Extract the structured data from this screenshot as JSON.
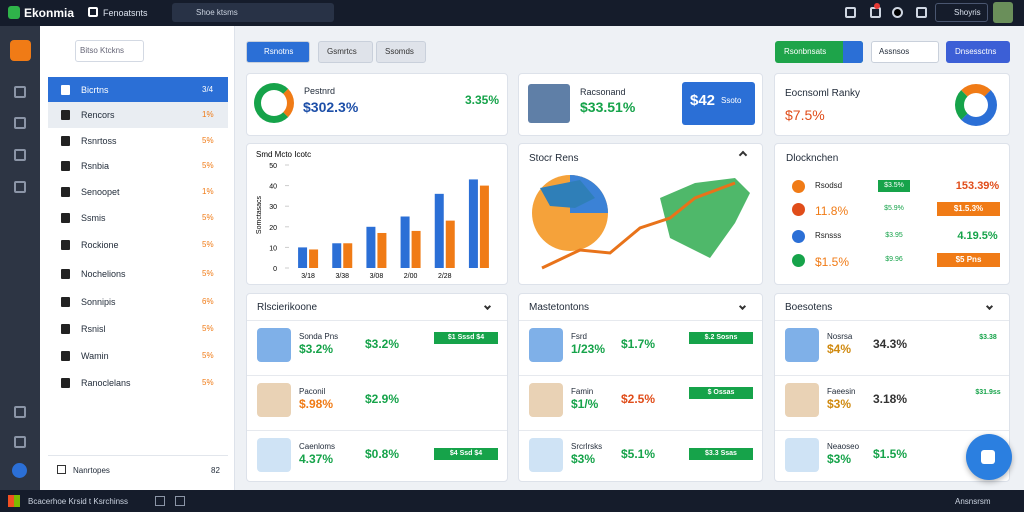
{
  "header": {
    "app_name": "Ekonmia",
    "workspace": "Fenoatsnts",
    "search": "Shoe ktsms",
    "account": "Shoyris"
  },
  "sidebar": {
    "search": "Bitso Ktckns",
    "items": [
      {
        "label": "Bicrtns",
        "value": "3/4"
      },
      {
        "label": "Rencors",
        "value": "1%"
      },
      {
        "label": "Rsnrtoss",
        "value": "5%"
      },
      {
        "label": "Rsnbia",
        "value": "5%"
      },
      {
        "label": "Senoopet",
        "value": "1%"
      },
      {
        "label": "Ssmis",
        "value": "5%"
      },
      {
        "label": "Rockione",
        "value": "5%"
      },
      {
        "label": "Nochelions",
        "value": "5%"
      },
      {
        "label": "Sonnipis",
        "value": "6%"
      },
      {
        "label": "Rsnisl",
        "value": "5%"
      },
      {
        "label": "Wamin",
        "value": "5%"
      },
      {
        "label": "Ranoclelans",
        "value": "5%"
      }
    ],
    "footer": "Nanrtopes",
    "footer_value": "82"
  },
  "toolbar": {
    "tabs": [
      "Rsnotns",
      "Gsmrtcs",
      "Ssomds"
    ],
    "primary": "Rsonbnsats",
    "select": "Assnsos",
    "secondary": "Dnsessctns"
  },
  "summary_cards": [
    {
      "title": "Pestnrd",
      "value": "$302.3%",
      "change": "3.35%"
    },
    {
      "title": "Racsonand",
      "value": "$33.51%",
      "badge": "$42",
      "badge_text": "Ssoto"
    },
    {
      "title": "Eocnsoml Ranky",
      "value": "$7.5%"
    }
  ],
  "chart_data": {
    "type": "bar",
    "title": "Smd Mcto Icotc",
    "y_label": "Somctasacs",
    "categories": [
      "3/18",
      "3/38",
      "3/08",
      "2/00",
      "2/28",
      null
    ],
    "series": [
      {
        "name": "A",
        "color": "#2b6fd6",
        "values": [
          10,
          12,
          20,
          25,
          36,
          43
        ]
      },
      {
        "name": "B",
        "color": "#f07b16",
        "values": [
          9,
          12,
          17,
          18,
          23,
          40
        ]
      }
    ],
    "ylim": [
      0,
      50
    ],
    "yticks": [
      0,
      10,
      20,
      30,
      40,
      50
    ]
  },
  "map_card": {
    "title": "Stocr Rens"
  },
  "stock_list": {
    "title": "Dlocknchen",
    "rows": [
      {
        "label": "Rsodsd",
        "tag": "$3.5%",
        "value": "153.39%"
      },
      {
        "label": "11.8%",
        "tag": "$5.9%",
        "value": "$1.5.3%"
      },
      {
        "label": "Rsnsss",
        "tag": "$3.95",
        "value": "4.19.5%"
      },
      {
        "label": "$1.5%",
        "tag": "$9.96",
        "value": "$5 Pns"
      }
    ]
  },
  "list_cards": [
    {
      "title": "Rlscierikoone",
      "rows": [
        {
          "label": "Sonda Pns",
          "v1": "$3.2%",
          "v2": "$3.2%",
          "badge": "$1 Sssd $4"
        },
        {
          "label": "Paconil",
          "v1": "$.98%",
          "v2": "$2.9%"
        },
        {
          "label": "Caenloms",
          "v1": "4.37%",
          "v2": "$0.8%",
          "badge": "$4 Ssd $4"
        }
      ]
    },
    {
      "title": "Mastetontons",
      "rows": [
        {
          "label": "Fsrd",
          "v1": "1/23%",
          "v2": "$1.7%",
          "badge": "$.2 Sosns"
        },
        {
          "label": "Famin",
          "v1": "$1/%",
          "v2": "$2.5%",
          "badge": "$ Ossas"
        },
        {
          "label": "Srcrlrsks",
          "v1": "$3%",
          "v2": "$5.1%",
          "badge": "$3.3 Ssas"
        }
      ]
    },
    {
      "title": "Boesotens",
      "rows": [
        {
          "label": "Nosrsa",
          "v1": "$4%",
          "v2": "34.3%",
          "badge": "$3.38"
        },
        {
          "label": "Faeesin",
          "v1": "$3%",
          "v2": "3.18%",
          "badge": "$31.9ss"
        },
        {
          "label": "Neaoseo",
          "v1": "$3%",
          "v2": "$1.5%",
          "badge": "$3.3%s"
        }
      ]
    }
  ],
  "taskbar": {
    "left": "Bcacerhoe Krsid t Ksrchinss",
    "right": "Ansnsrsm"
  }
}
